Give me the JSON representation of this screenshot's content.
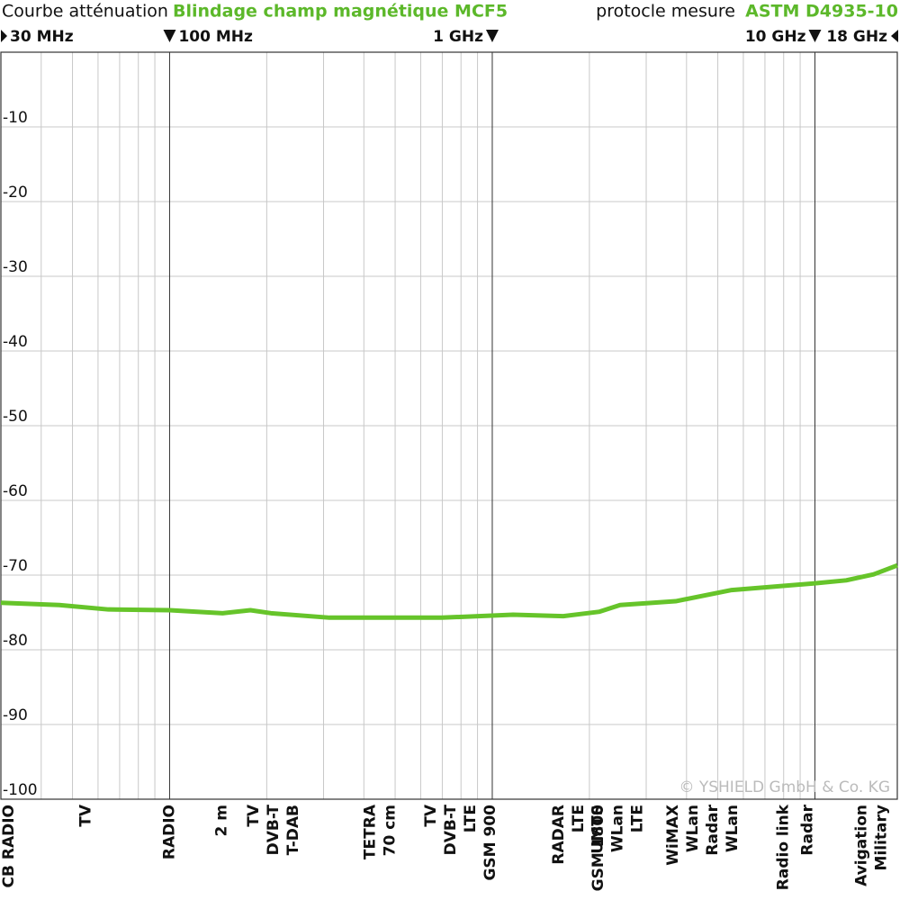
{
  "chart_data": {
    "type": "line",
    "title": "Courbe atténuation",
    "subtitle": "Blindage champ magnétique MCF5",
    "protocol_label": "protocle mesure",
    "protocol": "ASTM D4935-10",
    "copyright": "© YSHIELD GmbH & Co. KG",
    "x_scale": "log",
    "xlim": [
      30,
      18000
    ],
    "ylim": [
      -100,
      0
    ],
    "xticks": [
      {
        "value": 30,
        "label": "30 MHz"
      },
      {
        "value": 100,
        "label": "100 MHz"
      },
      {
        "value": 1000,
        "label": "1 GHz"
      },
      {
        "value": 10000,
        "label": "10 GHz"
      },
      {
        "value": 18000,
        "label": "18 GHz"
      }
    ],
    "yticks": [
      -10,
      -20,
      -30,
      -40,
      -50,
      -60,
      -70,
      -80,
      -90,
      -100
    ],
    "grid": true,
    "accent_color": "#5cb82a",
    "series": [
      {
        "name": "MCF5",
        "color": "#66c42a",
        "x": [
          30,
          45.5,
          64.6,
          100,
          146,
          178,
          206,
          313,
          698,
          1160,
          1660,
          2150,
          2490,
          3700,
          5520,
          10000,
          12500,
          15200,
          18000
        ],
        "values": [
          -73.7,
          -74.0,
          -74.6,
          -74.7,
          -75.1,
          -74.7,
          -75.1,
          -75.7,
          -75.7,
          -75.3,
          -75.5,
          -74.9,
          -74.0,
          -73.5,
          -72.0,
          -71.1,
          -70.7,
          -69.9,
          -68.7
        ]
      }
    ],
    "band_labels": [
      {
        "x": 31,
        "lines": [
          "CB RADIO"
        ]
      },
      {
        "x": 55,
        "lines": [
          "TV"
        ]
      },
      {
        "x": 100,
        "lines": [
          "RADIO"
        ]
      },
      {
        "x": 145,
        "lines": [
          "2 m"
        ]
      },
      {
        "x": 210,
        "lines": [
          "TV",
          "DVB-T",
          "T-DAB"
        ]
      },
      {
        "x": 450,
        "lines": [
          "TETRA",
          "70 cm"
        ]
      },
      {
        "x": 800,
        "lines": [
          "TV",
          "DVB-T",
          "LTE",
          "GSM 900"
        ]
      },
      {
        "x": 1850,
        "lines": [
          "RADAR",
          "LTE",
          "GSM 1800"
        ]
      },
      {
        "x": 2450,
        "lines": [
          "UMTS",
          "WLan",
          "LTE"
        ]
      },
      {
        "x": 4500,
        "lines": [
          "WiMAX",
          "WLan",
          "Radar",
          "WLan"
        ]
      },
      {
        "x": 8000,
        "lines": [
          "Radio link"
        ]
      },
      {
        "x": 9500,
        "lines": [
          "Radar"
        ]
      },
      {
        "x": 15000,
        "lines": [
          "Avigation",
          "Military"
        ]
      }
    ]
  }
}
